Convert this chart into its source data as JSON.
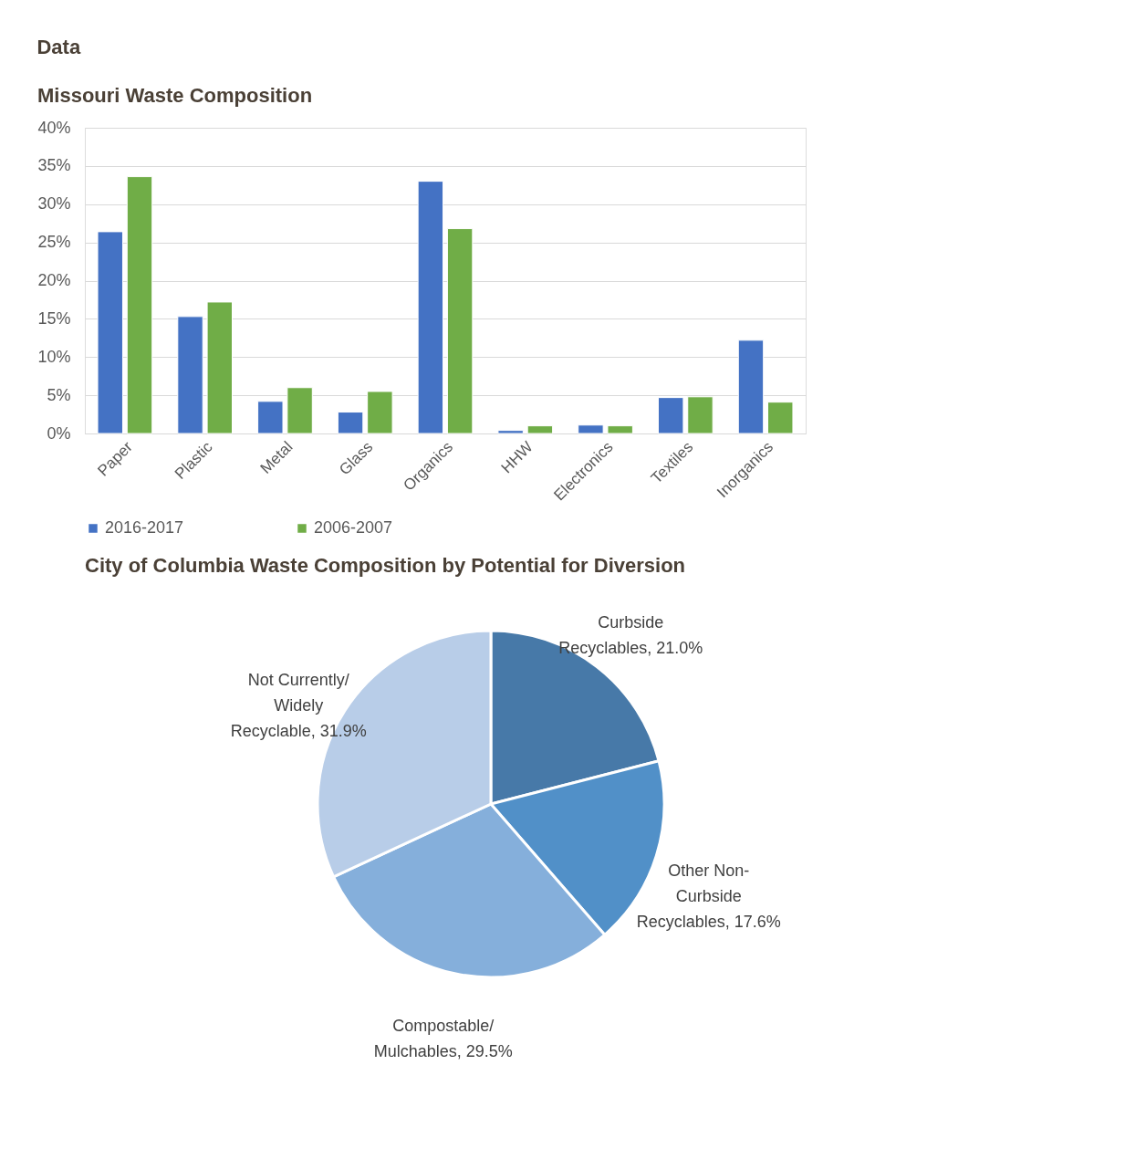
{
  "chart_data": [
    {
      "type": "bar",
      "title": "Missouri Waste Composition",
      "annotations": [
        "Data"
      ],
      "categories": [
        "Paper",
        "Plastic",
        "Metal",
        "Glass",
        "Organics",
        "HHW",
        "Electronics",
        "Textiles",
        "Inorganics"
      ],
      "series": [
        {
          "name": "2016-2017",
          "color": "#4472c4",
          "values": [
            26.4,
            15.3,
            4.2,
            2.8,
            33.0,
            0.4,
            1.1,
            4.7,
            12.2
          ]
        },
        {
          "name": "2006-2007",
          "color": "#70ad47",
          "values": [
            33.6,
            17.2,
            6.0,
            5.5,
            26.8,
            1.0,
            1.0,
            4.8,
            4.1
          ]
        }
      ],
      "ylim": [
        0,
        40
      ],
      "yticks": [
        {
          "value": 0,
          "label": "0%"
        },
        {
          "value": 5,
          "label": "5%"
        },
        {
          "value": 10,
          "label": "10%"
        },
        {
          "value": 15,
          "label": "15%"
        },
        {
          "value": 20,
          "label": "20%"
        },
        {
          "value": 25,
          "label": "25%"
        },
        {
          "value": 30,
          "label": "30%"
        },
        {
          "value": 35,
          "label": "35%"
        },
        {
          "value": 40,
          "label": "40%"
        }
      ],
      "grid": "y",
      "legend": "bottom"
    },
    {
      "type": "pie",
      "title": "City of Columbia Waste Composition by Potential for Diversion",
      "categories": [
        "Curbside Recyclables",
        "Other Non-Curbside Recyclables",
        "Compostable/ Mulchables",
        "Not Currently/ Widely Recyclable"
      ],
      "values": [
        21.0,
        17.6,
        29.5,
        31.9
      ],
      "value_labels": [
        "21.0%",
        "17.6%",
        "29.5%",
        "31.9%"
      ],
      "colors": [
        "#4779a8",
        "#5190c8",
        "#85afdb",
        "#b8cde8"
      ]
    }
  ]
}
